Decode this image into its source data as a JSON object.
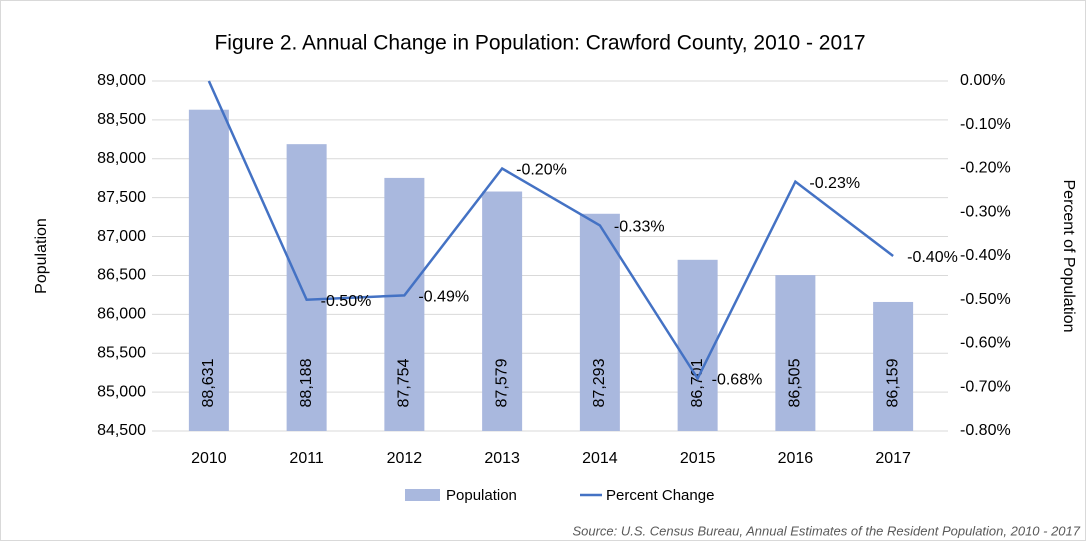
{
  "chart_data": {
    "type": "bar-line",
    "title": "Figure 2. Annual Change in Population: Crawford County, 2010 - 2017",
    "y_label": "Population",
    "y2_label": "Percent of Population",
    "source": "Source: U.S. Census Bureau, Annual Estimates of the Resident Population, 2010 - 2017",
    "categories": [
      "2010",
      "2011",
      "2012",
      "2013",
      "2014",
      "2015",
      "2016",
      "2017"
    ],
    "series": [
      {
        "name": "Population",
        "type": "bar",
        "color": "#a9b8de",
        "values": [
          88631,
          88188,
          87754,
          87579,
          87293,
          86701,
          86505,
          86159
        ],
        "value_labels": [
          "88,631",
          "88,188",
          "87,754",
          "87,579",
          "87,293",
          "86,701",
          "86,505",
          "86,159"
        ]
      },
      {
        "name": "Percent Change",
        "type": "line",
        "axis": "y2",
        "color": "#4472c4",
        "values": [
          0,
          -0.5,
          -0.49,
          -0.2,
          -0.33,
          -0.68,
          -0.23,
          -0.4
        ],
        "value_labels": [
          null,
          "-0.50%",
          "-0.49%",
          "-0.20%",
          "-0.33%",
          "-0.68%",
          "-0.23%",
          "-0.40%"
        ]
      }
    ],
    "ylim": [
      84500,
      89000
    ],
    "yticks": [
      {
        "value": 84500,
        "label": "84,500"
      },
      {
        "value": 85000,
        "label": "85,000"
      },
      {
        "value": 85500,
        "label": "85,500"
      },
      {
        "value": 86000,
        "label": "86,000"
      },
      {
        "value": 86500,
        "label": "86,500"
      },
      {
        "value": 87000,
        "label": "87,000"
      },
      {
        "value": 87500,
        "label": "87,500"
      },
      {
        "value": 88000,
        "label": "88,000"
      },
      {
        "value": 88500,
        "label": "88,500"
      },
      {
        "value": 89000,
        "label": "89,000"
      }
    ],
    "y2lim": [
      -0.8,
      0
    ],
    "y2ticks": [
      {
        "value": -0.8,
        "label": "-0.80%"
      },
      {
        "value": -0.7,
        "label": "-0.70%"
      },
      {
        "value": -0.6,
        "label": "-0.60%"
      },
      {
        "value": -0.5,
        "label": "-0.50%"
      },
      {
        "value": -0.4,
        "label": "-0.40%"
      },
      {
        "value": -0.3,
        "label": "-0.30%"
      },
      {
        "value": -0.2,
        "label": "-0.20%"
      },
      {
        "value": -0.1,
        "label": "-0.10%"
      },
      {
        "value": 0,
        "label": "0.00%"
      }
    ],
    "grid": true,
    "legend": "bottom"
  }
}
